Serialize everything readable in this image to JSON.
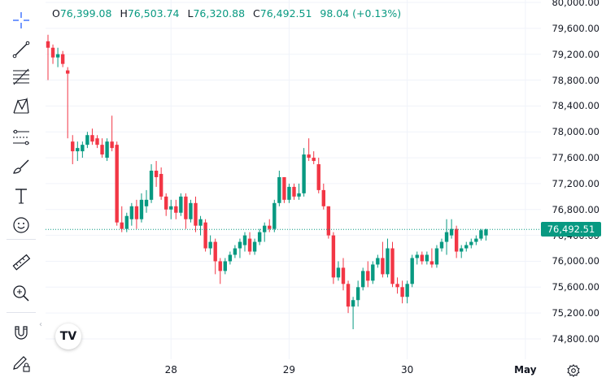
{
  "toolbar": {
    "tools": [
      {
        "name": "crosshair-tool",
        "icon": "crosshair-icon"
      },
      {
        "name": "trend-line-tool",
        "icon": "trend-line-icon"
      },
      {
        "name": "fib-retracement-tool",
        "icon": "fib-lines-icon"
      },
      {
        "name": "pattern-tool",
        "icon": "xabcd-pattern-icon"
      },
      {
        "name": "prediction-tool",
        "icon": "forecast-icon"
      },
      {
        "name": "brush-tool",
        "icon": "brush-icon"
      },
      {
        "name": "text-tool",
        "icon": "text-icon"
      },
      {
        "name": "emoji-tool",
        "icon": "smiley-icon"
      },
      {
        "name": "measure-tool",
        "icon": "ruler-icon"
      },
      {
        "name": "zoom-tool",
        "icon": "zoom-in-icon"
      },
      {
        "name": "magnet-tool",
        "icon": "magnet-icon"
      },
      {
        "name": "lock-drawings-tool",
        "icon": "pencil-lock-icon"
      }
    ],
    "collapse_glyph": "‹"
  },
  "legend": {
    "o_label": "O",
    "o_value": "76,399.08",
    "h_label": "H",
    "h_value": "76,503.74",
    "l_label": "L",
    "l_value": "76,320.88",
    "c_label": "C",
    "c_value": "76,492.51",
    "change": "98.04 (+0.13%)"
  },
  "logo_text": "TV",
  "colors": {
    "up": "#089981",
    "down": "#f23645",
    "grid": "#f0f3fa",
    "text": "#131722"
  },
  "chart_data": {
    "type": "candlestick",
    "price_ticks": [
      "80,000.00",
      "79,600.00",
      "79,200.00",
      "78,800.00",
      "78,400.00",
      "78,000.00",
      "77,600.00",
      "77,200.00",
      "76,800.00",
      "76,400.00",
      "76,000.00",
      "75,600.00",
      "75,200.00",
      "74,800.00"
    ],
    "tick_values": [
      80000,
      79600,
      79200,
      78800,
      78400,
      78000,
      77600,
      77200,
      76800,
      76400,
      76000,
      75600,
      75200,
      74800
    ],
    "time_ticks": [
      {
        "label": "28",
        "index": 25,
        "bold": false
      },
      {
        "label": "29",
        "index": 49,
        "bold": false
      },
      {
        "label": "30",
        "index": 73,
        "bold": false
      },
      {
        "label": "May",
        "index": 97,
        "bold": true
      }
    ],
    "last_price": 76492.51,
    "last_price_label": "76,492.51",
    "candles": [
      [
        79400,
        79500,
        78800,
        79300
      ],
      [
        79300,
        79350,
        79050,
        79150
      ],
      [
        79150,
        79300,
        79000,
        79200
      ],
      [
        79200,
        79250,
        79000,
        79050
      ],
      [
        78950,
        79000,
        77900,
        78900
      ],
      [
        77850,
        77950,
        77500,
        77700
      ],
      [
        77700,
        77850,
        77550,
        77750
      ],
      [
        77700,
        77850,
        77600,
        77800
      ],
      [
        77800,
        78000,
        77750,
        77950
      ],
      [
        77950,
        78050,
        77800,
        77850
      ],
      [
        77900,
        77950,
        77750,
        77800
      ],
      [
        77800,
        77900,
        77600,
        77650
      ],
      [
        77600,
        77900,
        77550,
        77850
      ],
      [
        77850,
        78250,
        77700,
        77750
      ],
      [
        77800,
        77850,
        76550,
        76600
      ],
      [
        76600,
        76850,
        76450,
        76500
      ],
      [
        76500,
        76750,
        76450,
        76700
      ],
      [
        76650,
        76900,
        76550,
        76850
      ],
      [
        76850,
        76950,
        76500,
        76650
      ],
      [
        76650,
        77050,
        76600,
        76950
      ],
      [
        76850,
        77100,
        76750,
        76950
      ],
      [
        76950,
        77500,
        76900,
        77400
      ],
      [
        77400,
        77550,
        77150,
        77300
      ],
      [
        77350,
        77450,
        76950,
        77000
      ],
      [
        77000,
        77050,
        76700,
        76800
      ],
      [
        76800,
        76950,
        76650,
        76850
      ],
      [
        76850,
        76950,
        76650,
        76750
      ],
      [
        76750,
        77050,
        76700,
        77000
      ],
      [
        77000,
        77050,
        76500,
        76650
      ],
      [
        76650,
        76950,
        76600,
        76900
      ],
      [
        76900,
        77000,
        76450,
        76550
      ],
      [
        76550,
        76700,
        76400,
        76650
      ],
      [
        76600,
        76650,
        76150,
        76200
      ],
      [
        76200,
        76400,
        76100,
        76300
      ],
      [
        76300,
        76350,
        75800,
        76000
      ],
      [
        76000,
        76050,
        75650,
        75850
      ],
      [
        75850,
        76050,
        75800,
        76000
      ],
      [
        76000,
        76150,
        75950,
        76100
      ],
      [
        76100,
        76250,
        76050,
        76200
      ],
      [
        76200,
        76350,
        76050,
        76300
      ],
      [
        76250,
        76450,
        76150,
        76400
      ],
      [
        76350,
        76450,
        76100,
        76150
      ],
      [
        76150,
        76350,
        76100,
        76300
      ],
      [
        76300,
        76500,
        76250,
        76450
      ],
      [
        76450,
        76600,
        76300,
        76550
      ],
      [
        76550,
        76650,
        76450,
        76500
      ],
      [
        76500,
        76950,
        76450,
        76900
      ],
      [
        76900,
        77400,
        76850,
        77300
      ],
      [
        77300,
        77300,
        76900,
        76950
      ],
      [
        76950,
        77200,
        76900,
        77150
      ],
      [
        77150,
        77200,
        76950,
        77000
      ],
      [
        77000,
        77200,
        76950,
        77050
      ],
      [
        77050,
        77750,
        77000,
        77650
      ],
      [
        77650,
        77900,
        77550,
        77600
      ],
      [
        77600,
        77700,
        77500,
        77550
      ],
      [
        77500,
        77600,
        77050,
        77100
      ],
      [
        77100,
        77200,
        76800,
        76850
      ],
      [
        76850,
        76850,
        76350,
        76400
      ],
      [
        76400,
        76450,
        75650,
        75750
      ],
      [
        75750,
        76000,
        75700,
        75900
      ],
      [
        75900,
        76050,
        75550,
        75650
      ],
      [
        75650,
        75700,
        75200,
        75300
      ],
      [
        75300,
        75450,
        74950,
        75400
      ],
      [
        75400,
        75700,
        75300,
        75600
      ],
      [
        75600,
        75900,
        75550,
        75850
      ],
      [
        75850,
        76000,
        75600,
        75700
      ],
      [
        75700,
        76000,
        75650,
        75950
      ],
      [
        75950,
        76100,
        75900,
        76050
      ],
      [
        76050,
        76300,
        75750,
        75800
      ],
      [
        75800,
        76350,
        75750,
        76200
      ],
      [
        76200,
        76300,
        75600,
        75650
      ],
      [
        75650,
        75750,
        75500,
        75600
      ],
      [
        75600,
        75700,
        75350,
        75450
      ],
      [
        75450,
        75700,
        75350,
        75650
      ],
      [
        75650,
        76100,
        75600,
        76050
      ],
      [
        76050,
        76150,
        75950,
        76100
      ],
      [
        76100,
        76150,
        75950,
        76000
      ],
      [
        76000,
        76150,
        75950,
        76100
      ],
      [
        76000,
        76200,
        75900,
        75950
      ],
      [
        75950,
        76250,
        75900,
        76200
      ],
      [
        76200,
        76350,
        76150,
        76300
      ],
      [
        76300,
        76650,
        76100,
        76450
      ],
      [
        76400,
        76650,
        76350,
        76500
      ],
      [
        76500,
        76550,
        76050,
        76150
      ],
      [
        76150,
        76250,
        76050,
        76200
      ],
      [
        76200,
        76300,
        76150,
        76250
      ],
      [
        76250,
        76350,
        76200,
        76300
      ],
      [
        76300,
        76400,
        76250,
        76350
      ],
      [
        76350,
        76500,
        76320,
        76480
      ],
      [
        76399,
        76503,
        76320,
        76492
      ]
    ]
  }
}
